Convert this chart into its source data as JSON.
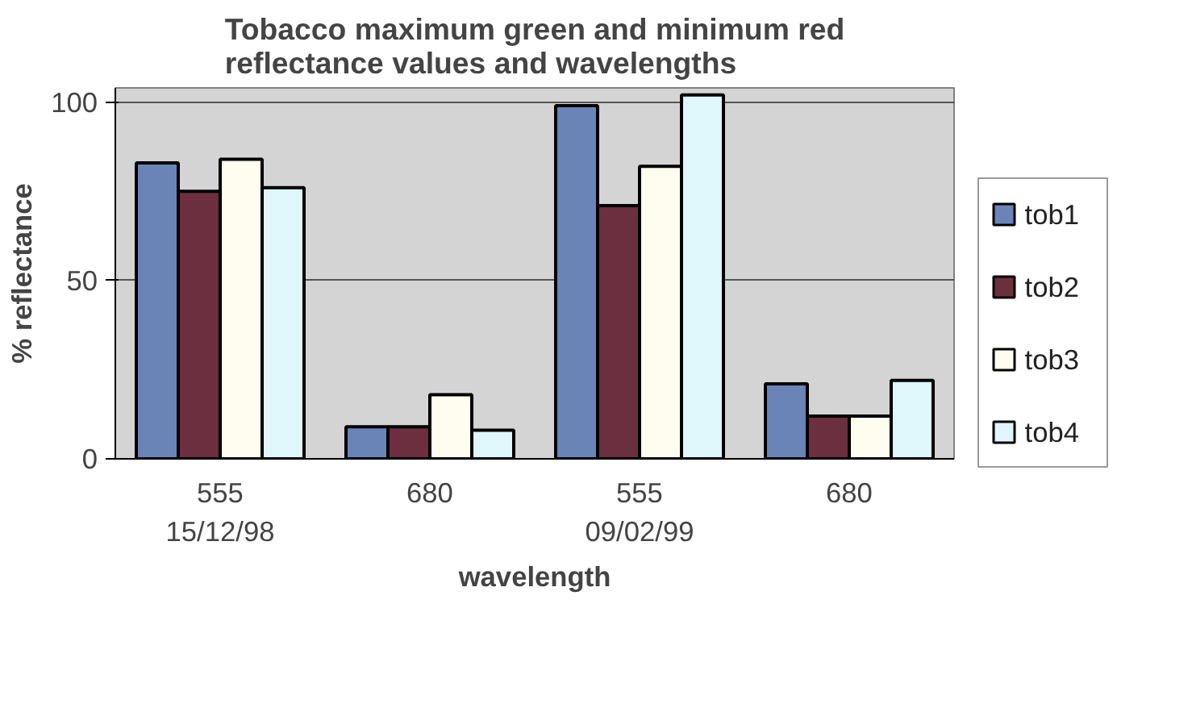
{
  "chart_data": {
    "type": "bar",
    "title": "Tobacco maximum green and minimum red\nreflectance values and wavelengths",
    "xlabel": "wavelength",
    "ylabel": "% reflectance",
    "categories": [
      "555\n15/12/98",
      "680",
      "555\n09/02/99",
      "680"
    ],
    "series": [
      {
        "name": "tob1",
        "color": "#6b84b8",
        "values": [
          83,
          9,
          99,
          21
        ]
      },
      {
        "name": "tob2",
        "color": "#6b2f3f",
        "values": [
          75,
          9,
          71,
          12
        ]
      },
      {
        "name": "tob3",
        "color": "#fffdf0",
        "values": [
          84,
          18,
          82,
          12
        ]
      },
      {
        "name": "tob4",
        "color": "#dff6fb",
        "values": [
          76,
          8,
          102,
          22
        ]
      }
    ],
    "ylim": [
      0,
      104
    ],
    "yticks": [
      0,
      50,
      100
    ],
    "grid": "y",
    "legend": "right"
  }
}
